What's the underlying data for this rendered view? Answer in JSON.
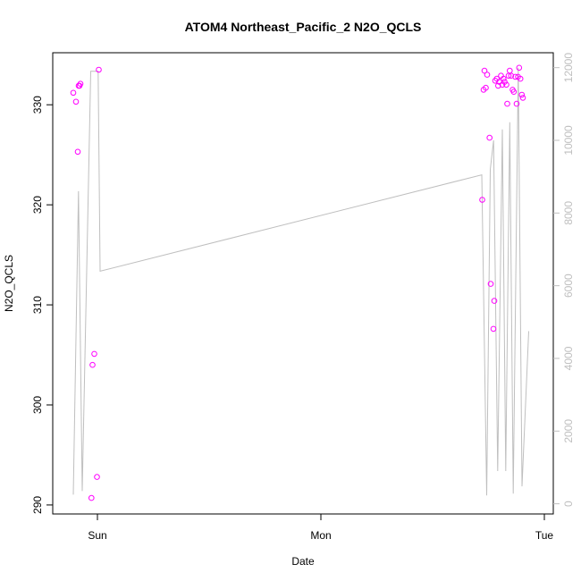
{
  "chart_data": {
    "type": "scatter",
    "title": "ATOM4 Northeast_Pacific_2 N2O_QCLS",
    "xlabel": "Date",
    "ylabel": "N2O_QCLS",
    "x_ticks": [
      {
        "value": 0,
        "label": "Sun"
      },
      {
        "value": 1,
        "label": "Mon"
      },
      {
        "value": 2,
        "label": "Tue"
      }
    ],
    "xlim": [
      -0.2,
      2.04
    ],
    "ylim": [
      289.1,
      335.2
    ],
    "y_ticks": [
      290,
      300,
      310,
      320,
      330
    ],
    "y2lim": [
      -280,
      12410
    ],
    "y2_ticks": [
      0,
      2000,
      4000,
      6000,
      8000,
      10000,
      12000
    ],
    "grid": false,
    "colors": {
      "points": "#ff00ff",
      "line": "#bfbfbf",
      "right_axis": "#bfbfbf"
    },
    "series": [
      {
        "type": "scatter",
        "points": [
          [
            -0.108,
            331.2
          ],
          [
            -0.096,
            330.3
          ],
          [
            -0.088,
            325.3
          ],
          [
            -0.084,
            331.9
          ],
          [
            -0.076,
            332.1
          ],
          [
            -0.08,
            331.9
          ],
          [
            -0.027,
            290.7
          ],
          [
            -0.022,
            304.0
          ],
          [
            -0.014,
            305.1
          ],
          [
            -0.002,
            292.8
          ],
          [
            0.006,
            333.5
          ],
          [
            1.722,
            320.5
          ],
          [
            1.728,
            331.5
          ],
          [
            1.732,
            333.4
          ],
          [
            1.738,
            331.7
          ],
          [
            1.744,
            333.0
          ],
          [
            1.755,
            326.7
          ],
          [
            1.76,
            312.1
          ],
          [
            1.772,
            307.6
          ],
          [
            1.776,
            310.4
          ],
          [
            1.78,
            332.4
          ],
          [
            1.787,
            332.6
          ],
          [
            1.793,
            331.9
          ],
          [
            1.798,
            332.3
          ],
          [
            1.806,
            332.9
          ],
          [
            1.812,
            332.0
          ],
          [
            1.817,
            332.6
          ],
          [
            1.822,
            332.3
          ],
          [
            1.83,
            332.0
          ],
          [
            1.834,
            330.1
          ],
          [
            1.84,
            332.9
          ],
          [
            1.845,
            333.4
          ],
          [
            1.851,
            332.9
          ],
          [
            1.858,
            331.5
          ],
          [
            1.863,
            331.3
          ],
          [
            1.87,
            332.8
          ],
          [
            1.876,
            330.1
          ],
          [
            1.882,
            332.8
          ],
          [
            1.887,
            333.7
          ],
          [
            1.893,
            332.6
          ],
          [
            1.899,
            331.0
          ],
          [
            1.904,
            330.7
          ]
        ]
      },
      {
        "type": "line",
        "axis": "right",
        "points": [
          [
            -0.108,
            250
          ],
          [
            -0.085,
            8600
          ],
          [
            -0.068,
            350
          ],
          [
            -0.03,
            11900
          ],
          [
            0.003,
            11900
          ],
          [
            0.012,
            6400
          ],
          [
            1.72,
            9050
          ],
          [
            1.742,
            230
          ],
          [
            1.758,
            9200
          ],
          [
            1.773,
            10000
          ],
          [
            1.791,
            900
          ],
          [
            1.812,
            10300
          ],
          [
            1.827,
            900
          ],
          [
            1.845,
            10500
          ],
          [
            1.861,
            280
          ],
          [
            1.883,
            12000
          ],
          [
            1.9,
            480
          ],
          [
            1.93,
            4750
          ]
        ]
      }
    ]
  }
}
